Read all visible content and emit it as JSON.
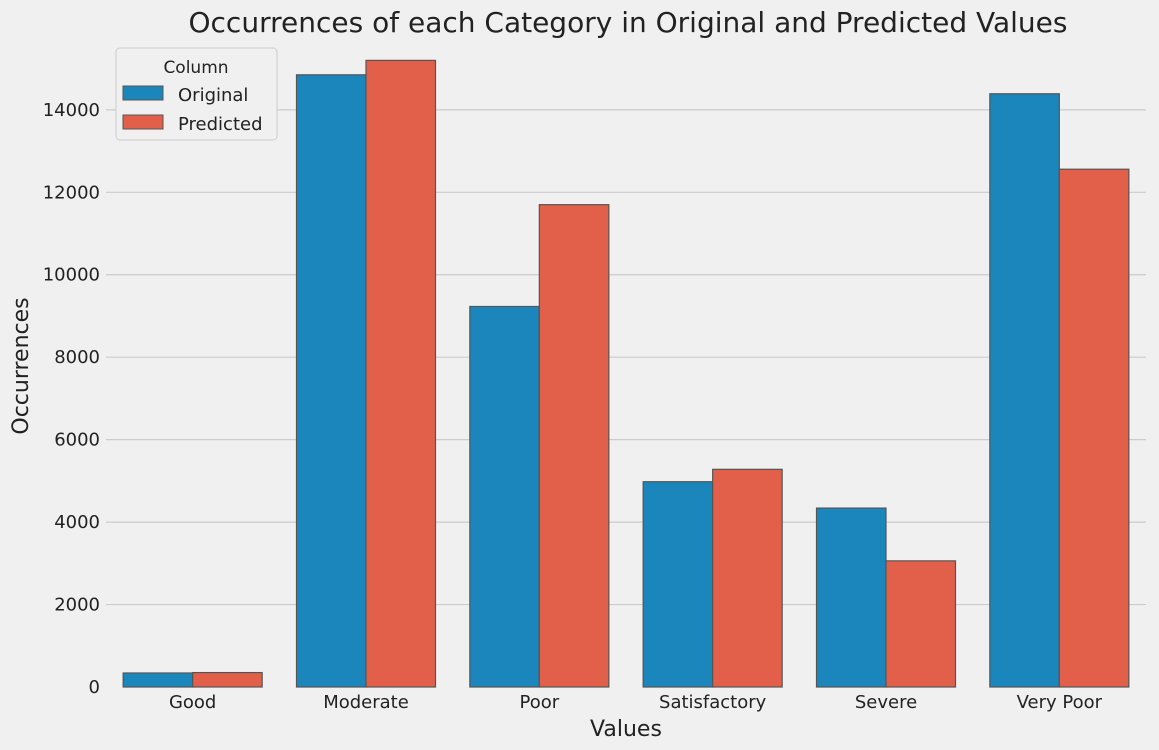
{
  "chart_data": {
    "type": "bar",
    "title": "Occurrences of each Category in Original and Predicted Values",
    "xlabel": "Values",
    "ylabel": "Occurrences",
    "categories": [
      "Good",
      "Moderate",
      "Poor",
      "Satisfactory",
      "Severe",
      "Very Poor"
    ],
    "series": [
      {
        "name": "Original",
        "color": "#1a86bc",
        "values": [
          340,
          14850,
          9230,
          4980,
          4340,
          14390
        ]
      },
      {
        "name": "Predicted",
        "color": "#e2604a",
        "values": [
          350,
          15200,
          11700,
          5280,
          3060,
          12560
        ]
      }
    ],
    "ylim": [
      0,
      15500
    ],
    "yticks": [
      0,
      2000,
      4000,
      6000,
      8000,
      10000,
      12000,
      14000
    ],
    "grid": "horizontal",
    "legend": {
      "title": "Column",
      "position": "top-left"
    },
    "bar_edge_color": "#555555",
    "background_color": "#f0f0f0",
    "grid_color": "#cbcbcb"
  }
}
